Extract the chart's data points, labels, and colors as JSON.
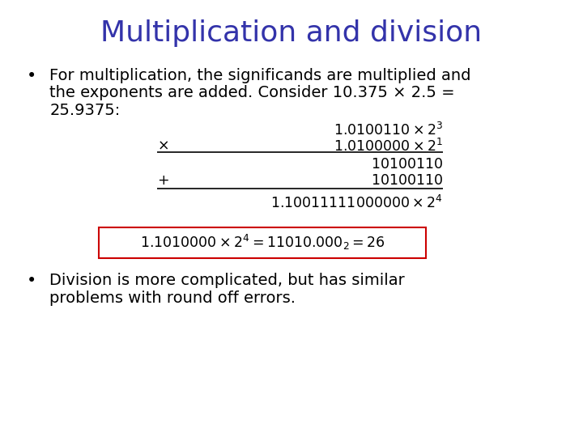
{
  "title": "Multiplication and division",
  "title_color": "#3333AA",
  "title_fontsize": 26,
  "bg_color": "#FFFFFF",
  "bullet1_line1": "For multiplication, the significands are multiplied and",
  "bullet1_line2": "the exponents are added. Consider 10.375 × 2.5 =",
  "bullet1_line3": "25.9375:",
  "bullet2_line1": "Division is more complicated, but has similar",
  "bullet2_line2": "problems with round off errors.",
  "bullet_fontsize": 14,
  "math_fontsize": 12.5,
  "box_color": "#CC0000",
  "line1": "$1.0100110 \\times 2^{3}$",
  "line2_prefix": "$\\times$",
  "line2": "$1.0100000 \\times 2^{1}$",
  "line3": "$10100110$",
  "line4_prefix": "$+$",
  "line4": "$10100110$",
  "line5": "$1.10011111000000 \\times 2^{4}$",
  "box_text": "$1.1010000 \\times 2^{4} = 11010.000_{2} = 26$"
}
